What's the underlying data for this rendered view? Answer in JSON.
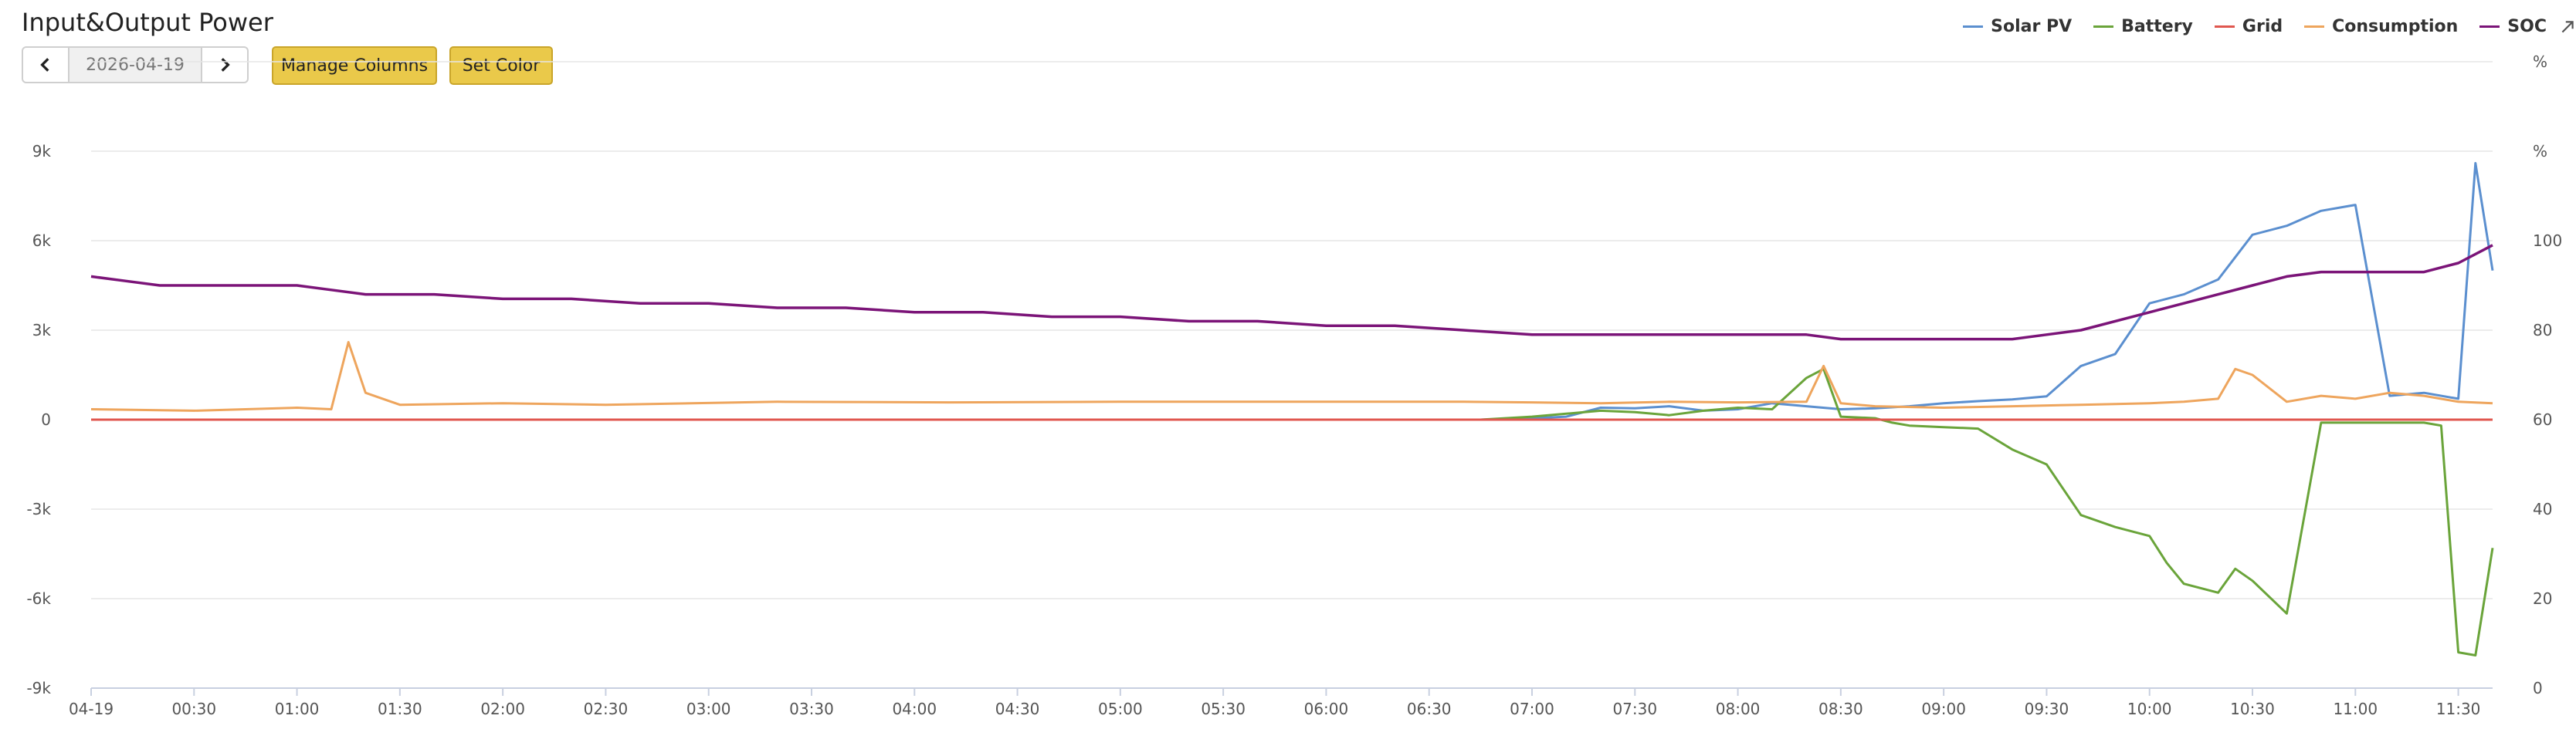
{
  "header": {
    "title": "Input&Output Power"
  },
  "toolbar": {
    "date": "2026-04-19",
    "manage_columns_label": "Manage Columns",
    "set_color_label": "Set Color"
  },
  "legend": [
    {
      "name": "Solar PV",
      "color": "#5b8fcf"
    },
    {
      "name": "Battery",
      "color": "#6aa43a"
    },
    {
      "name": "Grid",
      "color": "#e0574f"
    },
    {
      "name": "Consumption",
      "color": "#eea55d"
    },
    {
      "name": "SOC",
      "color": "#7b1478"
    }
  ],
  "chart_data": {
    "type": "line",
    "x_ticks": [
      "04-19",
      "00:30",
      "01:00",
      "01:30",
      "02:00",
      "02:30",
      "03:00",
      "03:30",
      "04:00",
      "04:30",
      "05:00",
      "05:30",
      "06:00",
      "06:30",
      "07:00",
      "07:30",
      "08:00",
      "08:30",
      "09:00",
      "09:30",
      "10:00",
      "10:30",
      "11:00",
      "11:30"
    ],
    "x_range_minutes": [
      0,
      700
    ],
    "y_left": {
      "unit": "%",
      "ticks": [
        "-9k",
        "-6k",
        "-3k",
        "0",
        "3k",
        "6k",
        "9k"
      ],
      "range": [
        -9000,
        12000
      ]
    },
    "y_right": {
      "unit": "%",
      "ticks": [
        "0",
        "20",
        "40",
        "60",
        "80",
        "100"
      ],
      "range": [
        0,
        140
      ]
    },
    "series": [
      {
        "name": "Solar PV",
        "axis": "left",
        "color": "#5b8fcf",
        "x": [
          0,
          405,
          420,
          430,
          440,
          450,
          460,
          470,
          480,
          490,
          500,
          510,
          520,
          530,
          540,
          550,
          560,
          570,
          580,
          590,
          600,
          610,
          620,
          630,
          640,
          650,
          660,
          670,
          680,
          690,
          695,
          700
        ],
        "y": [
          0,
          0,
          50,
          100,
          400,
          380,
          450,
          300,
          350,
          550,
          450,
          350,
          380,
          450,
          550,
          620,
          680,
          780,
          1800,
          2200,
          3900,
          4200,
          4700,
          6200,
          6500,
          7000,
          7200,
          800,
          900,
          700,
          8600,
          5000
        ]
      },
      {
        "name": "Battery",
        "axis": "left",
        "color": "#6aa43a",
        "x": [
          0,
          405,
          420,
          430,
          440,
          450,
          460,
          470,
          480,
          490,
          500,
          505,
          510,
          520,
          525,
          530,
          540,
          550,
          560,
          570,
          580,
          590,
          600,
          605,
          610,
          620,
          625,
          630,
          640,
          650,
          660,
          670,
          680,
          685,
          690,
          695,
          700
        ],
        "y": [
          0,
          0,
          100,
          200,
          300,
          250,
          150,
          300,
          400,
          350,
          1400,
          1700,
          100,
          50,
          -100,
          -200,
          -250,
          -300,
          -1000,
          -1500,
          -3200,
          -3600,
          -3900,
          -4800,
          -5500,
          -5800,
          -5000,
          -5400,
          -6500,
          -100,
          -100,
          -100,
          -100,
          -200,
          -7800,
          -7900,
          -4300
        ]
      },
      {
        "name": "Grid",
        "axis": "left",
        "color": "#e0574f",
        "x": [
          0,
          700
        ],
        "y": [
          0,
          0
        ]
      },
      {
        "name": "Consumption",
        "axis": "left",
        "color": "#eea55d",
        "x": [
          0,
          30,
          60,
          70,
          75,
          80,
          90,
          120,
          150,
          200,
          250,
          300,
          350,
          400,
          420,
          440,
          460,
          480,
          500,
          505,
          510,
          520,
          540,
          560,
          580,
          600,
          610,
          620,
          625,
          630,
          640,
          650,
          660,
          670,
          680,
          690,
          700
        ],
        "y": [
          350,
          300,
          400,
          350,
          2600,
          900,
          500,
          550,
          500,
          600,
          580,
          600,
          600,
          600,
          580,
          550,
          600,
          580,
          600,
          1800,
          550,
          450,
          400,
          450,
          500,
          550,
          600,
          700,
          1700,
          1500,
          600,
          800,
          700,
          900,
          800,
          600,
          550
        ]
      },
      {
        "name": "SOC",
        "axis": "right",
        "color": "#7b1478",
        "x": [
          0,
          10,
          20,
          60,
          70,
          80,
          100,
          120,
          140,
          160,
          180,
          200,
          220,
          240,
          260,
          280,
          300,
          320,
          340,
          360,
          380,
          400,
          420,
          440,
          460,
          480,
          500,
          510,
          520,
          540,
          560,
          570,
          580,
          600,
          610,
          620,
          630,
          640,
          650,
          660,
          680,
          690,
          700
        ],
        "y": [
          92,
          91,
          90,
          90,
          89,
          88,
          88,
          87,
          87,
          86,
          86,
          85,
          85,
          84,
          84,
          83,
          83,
          82,
          82,
          81,
          81,
          80,
          79,
          79,
          79,
          79,
          79,
          78,
          78,
          78,
          78,
          79,
          80,
          84,
          86,
          88,
          90,
          92,
          93,
          93,
          93,
          95,
          99
        ]
      }
    ]
  }
}
